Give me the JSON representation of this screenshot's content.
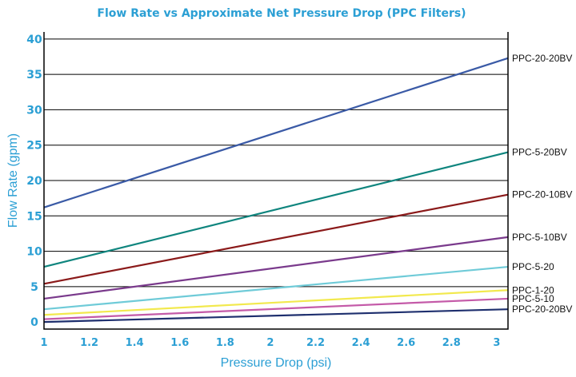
{
  "chart_data": {
    "type": "line",
    "title": "Flow Rate vs Approximate Net Pressure Drop (PPC Filters)",
    "xlabel": "Pressure Drop (psi)",
    "ylabel": "Flow Rate (gpm)",
    "xlim": [
      1,
      3.05
    ],
    "ylim": [
      -1,
      41
    ],
    "x_ticks": [
      "1",
      "1.2",
      "1.4",
      "1.6",
      "1.8",
      "2",
      "2.2",
      "2.4",
      "2.6",
      "2.8",
      "3"
    ],
    "y_ticks": [
      "0",
      "5",
      "10",
      "15",
      "20",
      "25",
      "30",
      "35",
      "40"
    ],
    "grid": "horizontal",
    "legend": "labels at right end of each line",
    "series": [
      {
        "name": "PPC-20-20BV",
        "x": [
          1,
          3.05
        ],
        "y": [
          16.2,
          37.3
        ],
        "color": "#3a5aa6"
      },
      {
        "name": "PPC-5-20BV",
        "x": [
          1,
          3.05
        ],
        "y": [
          7.8,
          24.0
        ],
        "color": "#0f857e"
      },
      {
        "name": "PPC-20-10BV",
        "x": [
          1,
          3.05
        ],
        "y": [
          5.4,
          18.0
        ],
        "color": "#8b1a1a"
      },
      {
        "name": "PPC-5-10BV",
        "x": [
          1,
          3.05
        ],
        "y": [
          3.3,
          12.0
        ],
        "color": "#7a3a8c"
      },
      {
        "name": "PPC-5-20",
        "x": [
          1,
          3.05
        ],
        "y": [
          1.8,
          7.8
        ],
        "color": "#6fcbd8"
      },
      {
        "name": "PPC-1-20",
        "x": [
          1,
          3.05
        ],
        "y": [
          1.0,
          4.5
        ],
        "color": "#f2e94e"
      },
      {
        "name": "PPC-5-10",
        "x": [
          1,
          3.05
        ],
        "y": [
          0.4,
          3.3
        ],
        "color": "#c45aa8"
      },
      {
        "name": "PPC-20-20BV",
        "x": [
          1,
          3.05
        ],
        "y": [
          0.0,
          1.8
        ],
        "color": "#1e2f6e"
      }
    ]
  }
}
